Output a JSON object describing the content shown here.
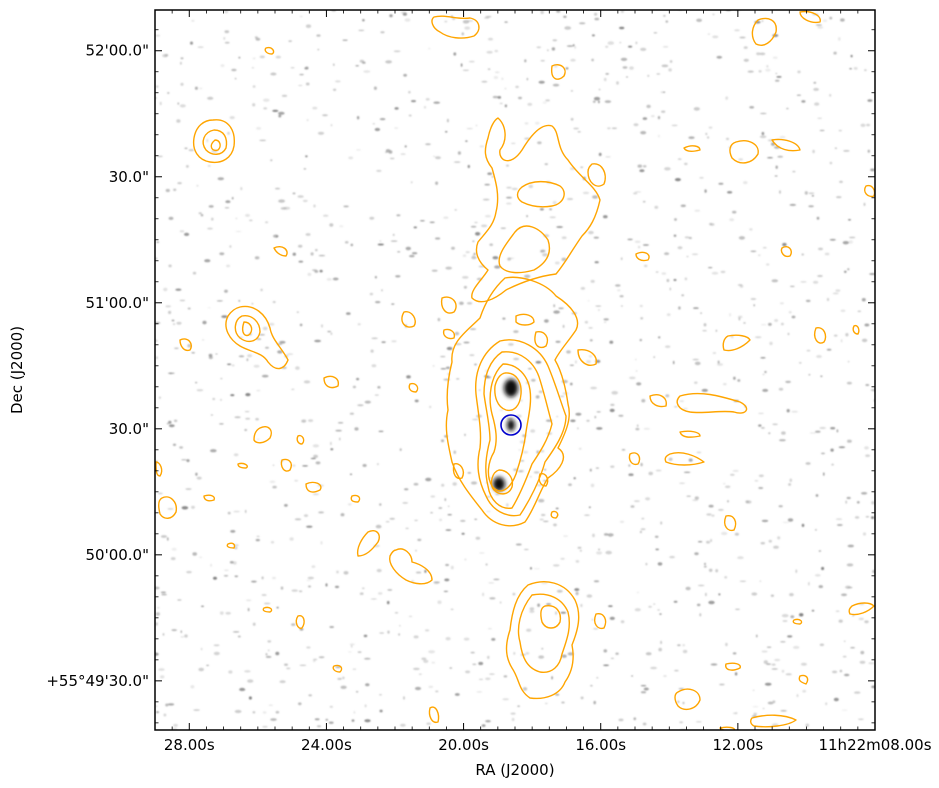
{
  "chart_data": {
    "type": "contour-image",
    "xlabel": "RA (J2000)",
    "ylabel": "Dec (J2000)",
    "x_ticks": [
      {
        "value_s": 28.0,
        "label": "28.00s"
      },
      {
        "value_s": 24.0,
        "label": "24.00s"
      },
      {
        "value_s": 20.0,
        "label": "20.00s"
      },
      {
        "value_s": 16.0,
        "label": "16.00s"
      },
      {
        "value_s": 12.0,
        "label": "12.00s"
      },
      {
        "value_s": 8.0,
        "label": "11h22m08.00s"
      }
    ],
    "y_ticks": [
      {
        "value_arcsec": 0,
        "label": "+55°49'30.0\""
      },
      {
        "value_arcsec": 30,
        "label": "50'00.0\""
      },
      {
        "value_arcsec": 60,
        "label": "30.0\""
      },
      {
        "value_arcsec": 90,
        "label": "51'00.0\""
      },
      {
        "value_arcsec": 120,
        "label": "30.0\""
      },
      {
        "value_arcsec": 150,
        "label": "52'00.0\""
      }
    ],
    "x_range_s": [
      29.0,
      8.0
    ],
    "y_range_arcsec": [
      -11.7,
      159.7
    ],
    "background": "greyscale optical image",
    "contour_color": "#ffa500",
    "marker": {
      "shape": "circle",
      "color": "#0000cc",
      "ra_s": 18.5,
      "dec_arcsec": 65.8
    },
    "contour_sources": [
      {
        "ra_s": 18.5,
        "dec_arcsec": 70,
        "levels": 5,
        "desc": "central elongated source"
      },
      {
        "ra_s": 17.8,
        "dec_arcsec": 12,
        "levels": 3,
        "desc": "southern lobe"
      },
      {
        "ra_s": 27.0,
        "dec_arcsec": 139,
        "levels": 3,
        "desc": "north-east compact source"
      },
      {
        "ra_s": 25.8,
        "dec_arcsec": 89,
        "levels": 3,
        "desc": "east compact source"
      }
    ]
  },
  "colors": {
    "contour": "#ffa500",
    "marker": "#0000cc",
    "axis": "#000000",
    "background": "#ffffff"
  }
}
